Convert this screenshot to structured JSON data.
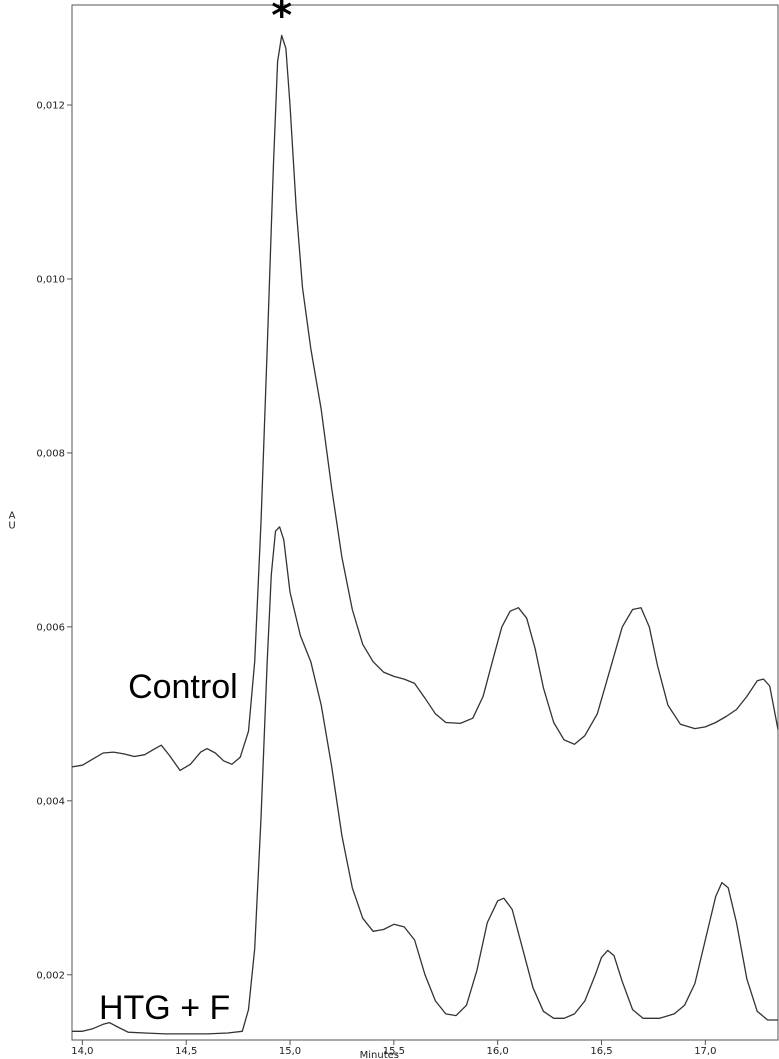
{
  "chart_data": {
    "type": "line",
    "title": "",
    "xlabel": "Minutes",
    "ylabel": "AU",
    "xlim": [
      13.95,
      17.35
    ],
    "ylim": [
      0.00125,
      0.01315
    ],
    "x_ticks": [
      "14,0",
      "14,5",
      "15,0",
      "15,5",
      "16,0",
      "16,5",
      "17,0"
    ],
    "x_tick_values": [
      14.0,
      14.5,
      15.0,
      15.5,
      16.0,
      16.5,
      17.0
    ],
    "y_ticks": [
      "0,002",
      "0,004",
      "0,006",
      "0,008",
      "0,010",
      "0,012"
    ],
    "y_tick_values": [
      0.002,
      0.004,
      0.006,
      0.008,
      0.01,
      0.012
    ],
    "grid": false,
    "annotations": [
      {
        "text": "*",
        "x": 14.96,
        "y": 0.0129
      }
    ],
    "series": [
      {
        "name": "Control",
        "label_anchor": {
          "x": 14.22,
          "y": 0.00518
        },
        "points": [
          [
            13.95,
            0.00439
          ],
          [
            14.0,
            0.00441
          ],
          [
            14.05,
            0.00448
          ],
          [
            14.1,
            0.00455
          ],
          [
            14.15,
            0.00456
          ],
          [
            14.2,
            0.00454
          ],
          [
            14.25,
            0.00451
          ],
          [
            14.3,
            0.00453
          ],
          [
            14.35,
            0.0046
          ],
          [
            14.38,
            0.00464
          ],
          [
            14.42,
            0.00452
          ],
          [
            14.47,
            0.00435
          ],
          [
            14.52,
            0.00442
          ],
          [
            14.57,
            0.00456
          ],
          [
            14.6,
            0.0046
          ],
          [
            14.64,
            0.00455
          ],
          [
            14.68,
            0.00446
          ],
          [
            14.72,
            0.00442
          ],
          [
            14.76,
            0.0045
          ],
          [
            14.8,
            0.0048
          ],
          [
            14.83,
            0.0056
          ],
          [
            14.86,
            0.0072
          ],
          [
            14.89,
            0.0092
          ],
          [
            14.92,
            0.0113
          ],
          [
            14.94,
            0.0125
          ],
          [
            14.96,
            0.0128
          ],
          [
            14.98,
            0.01265
          ],
          [
            15.0,
            0.012
          ],
          [
            15.03,
            0.0108
          ],
          [
            15.06,
            0.0099
          ],
          [
            15.1,
            0.0092
          ],
          [
            15.15,
            0.0085
          ],
          [
            15.2,
            0.0076
          ],
          [
            15.25,
            0.0068
          ],
          [
            15.3,
            0.0062
          ],
          [
            15.35,
            0.0058
          ],
          [
            15.4,
            0.0056
          ],
          [
            15.45,
            0.00548
          ],
          [
            15.5,
            0.00543
          ],
          [
            15.55,
            0.0054
          ],
          [
            15.6,
            0.00535
          ],
          [
            15.65,
            0.00518
          ],
          [
            15.7,
            0.005
          ],
          [
            15.75,
            0.0049
          ],
          [
            15.82,
            0.00489
          ],
          [
            15.88,
            0.00495
          ],
          [
            15.93,
            0.0052
          ],
          [
            15.98,
            0.00565
          ],
          [
            16.02,
            0.006
          ],
          [
            16.06,
            0.00618
          ],
          [
            16.1,
            0.00622
          ],
          [
            16.14,
            0.0061
          ],
          [
            16.18,
            0.00575
          ],
          [
            16.22,
            0.0053
          ],
          [
            16.27,
            0.0049
          ],
          [
            16.32,
            0.0047
          ],
          [
            16.37,
            0.00465
          ],
          [
            16.42,
            0.00475
          ],
          [
            16.48,
            0.005
          ],
          [
            16.54,
            0.0055
          ],
          [
            16.6,
            0.006
          ],
          [
            16.65,
            0.0062
          ],
          [
            16.69,
            0.00622
          ],
          [
            16.73,
            0.006
          ],
          [
            16.77,
            0.00555
          ],
          [
            16.82,
            0.0051
          ],
          [
            16.88,
            0.00488
          ],
          [
            16.95,
            0.00483
          ],
          [
            17.0,
            0.00485
          ],
          [
            17.05,
            0.0049
          ],
          [
            17.1,
            0.00497
          ],
          [
            17.15,
            0.00505
          ],
          [
            17.2,
            0.0052
          ],
          [
            17.25,
            0.00538
          ],
          [
            17.28,
            0.0054
          ],
          [
            17.31,
            0.00532
          ],
          [
            17.35,
            0.00482
          ]
        ]
      },
      {
        "name": "HTG + F",
        "label_anchor": {
          "x": 14.08,
          "y": 0.00149
        },
        "points": [
          [
            13.95,
            0.00135
          ],
          [
            14.0,
            0.00135
          ],
          [
            14.05,
            0.00138
          ],
          [
            14.1,
            0.00143
          ],
          [
            14.13,
            0.00145
          ],
          [
            14.17,
            0.0014
          ],
          [
            14.22,
            0.00134
          ],
          [
            14.3,
            0.00133
          ],
          [
            14.4,
            0.00132
          ],
          [
            14.5,
            0.00132
          ],
          [
            14.6,
            0.00132
          ],
          [
            14.7,
            0.00133
          ],
          [
            14.77,
            0.00135
          ],
          [
            14.8,
            0.0016
          ],
          [
            14.83,
            0.0023
          ],
          [
            14.86,
            0.0038
          ],
          [
            14.89,
            0.0056
          ],
          [
            14.91,
            0.0066
          ],
          [
            14.93,
            0.0071
          ],
          [
            14.95,
            0.00715
          ],
          [
            14.97,
            0.007
          ],
          [
            15.0,
            0.0064
          ],
          [
            15.05,
            0.0059
          ],
          [
            15.1,
            0.0056
          ],
          [
            15.15,
            0.0051
          ],
          [
            15.2,
            0.0044
          ],
          [
            15.25,
            0.0036
          ],
          [
            15.3,
            0.003
          ],
          [
            15.35,
            0.00265
          ],
          [
            15.4,
            0.0025
          ],
          [
            15.45,
            0.00252
          ],
          [
            15.5,
            0.00258
          ],
          [
            15.55,
            0.00255
          ],
          [
            15.6,
            0.0024
          ],
          [
            15.65,
            0.002
          ],
          [
            15.7,
            0.0017
          ],
          [
            15.75,
            0.00155
          ],
          [
            15.8,
            0.00153
          ],
          [
            15.85,
            0.00165
          ],
          [
            15.9,
            0.00205
          ],
          [
            15.95,
            0.0026
          ],
          [
            16.0,
            0.00285
          ],
          [
            16.03,
            0.00288
          ],
          [
            16.07,
            0.00275
          ],
          [
            16.12,
            0.0023
          ],
          [
            16.17,
            0.00185
          ],
          [
            16.22,
            0.00158
          ],
          [
            16.27,
            0.0015
          ],
          [
            16.32,
            0.0015
          ],
          [
            16.37,
            0.00155
          ],
          [
            16.42,
            0.0017
          ],
          [
            16.47,
            0.002
          ],
          [
            16.5,
            0.0022
          ],
          [
            16.53,
            0.00228
          ],
          [
            16.56,
            0.00222
          ],
          [
            16.6,
            0.00192
          ],
          [
            16.65,
            0.0016
          ],
          [
            16.7,
            0.0015
          ],
          [
            16.78,
            0.0015
          ],
          [
            16.85,
            0.00155
          ],
          [
            16.9,
            0.00165
          ],
          [
            16.95,
            0.0019
          ],
          [
            17.0,
            0.0024
          ],
          [
            17.05,
            0.0029
          ],
          [
            17.08,
            0.00306
          ],
          [
            17.11,
            0.003
          ],
          [
            17.15,
            0.0026
          ],
          [
            17.2,
            0.00195
          ],
          [
            17.25,
            0.00158
          ],
          [
            17.3,
            0.00148
          ],
          [
            17.35,
            0.00148
          ]
        ]
      }
    ]
  }
}
